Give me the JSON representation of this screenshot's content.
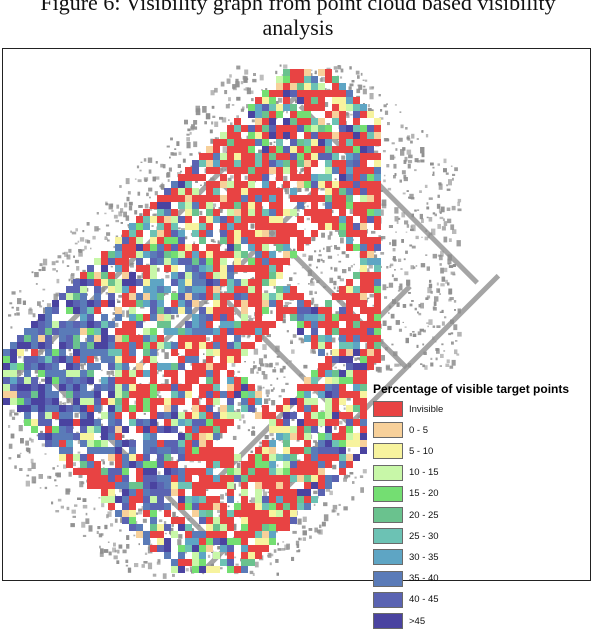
{
  "caption": {
    "line1": "Figure 6: Visibility graph from point cloud based visibility",
    "line2": "analysis"
  },
  "map": {
    "background_color": "#ffffff",
    "pointcloud_color": "#8f8f8f",
    "cell_colors_by_class": [
      "#e84343",
      "#f7d09a",
      "#f7f39e",
      "#c8f7a8",
      "#74de72",
      "#6ac28e",
      "#6cc2b4",
      "#5ea5c4",
      "#5a7bb8",
      "#5a63b2",
      "#4a43a0"
    ]
  },
  "legend": {
    "title": "Percentage of visible target points",
    "items": [
      {
        "label": "Invisible",
        "color": "#e84343"
      },
      {
        "label": "0 - 5",
        "color": "#f7d09a"
      },
      {
        "label": "5 - 10",
        "color": "#f7f39e"
      },
      {
        "label": "10 - 15",
        "color": "#c8f7a8"
      },
      {
        "label": "15 - 20",
        "color": "#74de72"
      },
      {
        "label": "20 - 25",
        "color": "#6ac28e"
      },
      {
        "label": "25 - 30",
        "color": "#6cc2b4"
      },
      {
        "label": "30 - 35",
        "color": "#5ea5c4"
      },
      {
        "label": "35 - 40",
        "color": "#5a7bb8"
      },
      {
        "label": "40 - 45",
        "color": "#5a63b2"
      },
      {
        "label": ">45",
        "color": "#4a43a0"
      }
    ]
  }
}
